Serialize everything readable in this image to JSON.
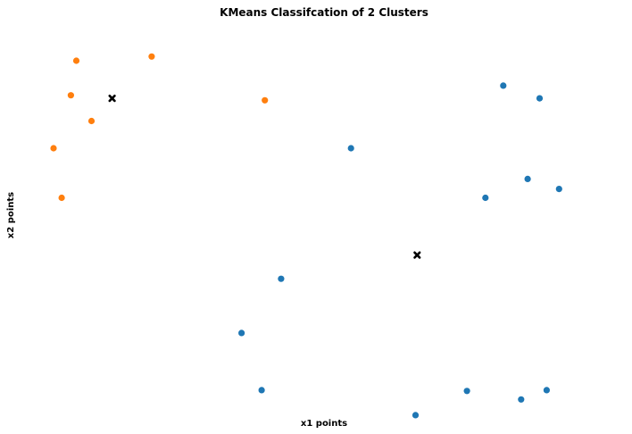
{
  "chart_data": {
    "type": "scatter",
    "title": "KMeans Classifcation of 2 Clusters",
    "xlabel": "x1 points",
    "ylabel": "x2 points",
    "axes_visible": false,
    "grid": false,
    "xlim": [
      0,
      100
    ],
    "ylim": [
      0,
      100
    ],
    "series": [
      {
        "color": "#ff7f0e",
        "marker": "circle",
        "points": [
          {
            "x": 4.2,
            "y": 90.0
          },
          {
            "x": 3.2,
            "y": 81.0
          },
          {
            "x": 7.0,
            "y": 74.3
          },
          {
            "x": 18.1,
            "y": 91.1
          },
          {
            "x": 39.0,
            "y": 79.7
          },
          {
            "x": 0.0,
            "y": 67.2
          },
          {
            "x": 1.5,
            "y": 54.3
          }
        ]
      },
      {
        "color": "#1f77b4",
        "marker": "circle",
        "points": [
          {
            "x": 83.0,
            "y": 83.5
          },
          {
            "x": 89.7,
            "y": 80.2
          },
          {
            "x": 54.9,
            "y": 67.2
          },
          {
            "x": 87.5,
            "y": 59.2
          },
          {
            "x": 93.3,
            "y": 56.6
          },
          {
            "x": 79.7,
            "y": 54.3
          },
          {
            "x": 42.0,
            "y": 33.2
          },
          {
            "x": 34.7,
            "y": 19.1
          },
          {
            "x": 38.4,
            "y": 4.2
          },
          {
            "x": 76.3,
            "y": 4.0
          },
          {
            "x": 66.8,
            "y": -2.3
          },
          {
            "x": 86.3,
            "y": 1.8
          },
          {
            "x": 91.0,
            "y": 4.2
          }
        ]
      }
    ],
    "centroids": {
      "color": "#000000",
      "marker": "x",
      "points": [
        {
          "x": 10.8,
          "y": 80.2
        },
        {
          "x": 67.1,
          "y": 39.4
        }
      ]
    }
  }
}
